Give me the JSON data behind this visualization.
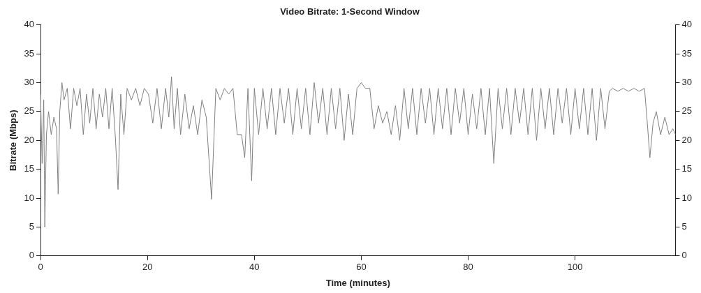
{
  "chart_data": {
    "type": "line",
    "title": "Video Bitrate: 1-Second Window",
    "xlabel": "Time (minutes)",
    "ylabel": "Bitrate (Mbps)",
    "xlim": [
      0,
      118.8
    ],
    "xticks": [
      0,
      20,
      40,
      60,
      80,
      100
    ],
    "ylim": [
      0,
      40
    ],
    "yticks": [
      0,
      5,
      10,
      15,
      20,
      25,
      30,
      35,
      40
    ],
    "y2lim": [
      0,
      40
    ],
    "y2ticks": [
      0,
      5,
      10,
      15,
      20,
      25,
      30,
      35,
      40
    ],
    "marker": "none",
    "grid": false,
    "legend": false,
    "series": [
      {
        "color": "#808080",
        "x": [
          0,
          0.3,
          0.6,
          0.8,
          1.1,
          1.5,
          2,
          2.5,
          3,
          3.3,
          3.6,
          4,
          4.4,
          5,
          5.6,
          6.2,
          6.8,
          7.4,
          8,
          8.6,
          9.2,
          9.8,
          10.4,
          11,
          11.6,
          12.2,
          12.8,
          13.4,
          14,
          14.5,
          15,
          15.6,
          16.2,
          17,
          17.8,
          18.6,
          19.4,
          20.2,
          21,
          21.8,
          22.6,
          23.4,
          24,
          24.5,
          25,
          25.6,
          26.2,
          27,
          27.8,
          28.6,
          29.4,
          30.2,
          31,
          32,
          32.8,
          33.6,
          34.4,
          35.2,
          36,
          36.8,
          37.6,
          38.2,
          38.8,
          39.5,
          40,
          40.8,
          41.6,
          42.4,
          43.2,
          44,
          44.8,
          45.6,
          46.4,
          47.2,
          48,
          48.8,
          49.6,
          50.4,
          51.2,
          52,
          52.8,
          53.6,
          54.4,
          55.2,
          56,
          56.8,
          57.6,
          58.4,
          59.2,
          60,
          60.8,
          61.6,
          62.4,
          63.2,
          64,
          64.8,
          65.6,
          66.4,
          67.2,
          68,
          68.8,
          69.6,
          70.4,
          71.2,
          72,
          72.8,
          73.6,
          74.4,
          75.2,
          76,
          76.8,
          77.6,
          78.4,
          79.2,
          80,
          80.8,
          81.6,
          82.4,
          83.2,
          84,
          84.8,
          85.6,
          86.4,
          87.2,
          88,
          88.8,
          89.6,
          90.4,
          91.2,
          92,
          92.8,
          93.6,
          94.4,
          95.2,
          96,
          96.8,
          97.6,
          98.4,
          99.2,
          100,
          100.8,
          101.6,
          102.4,
          103.2,
          104,
          104.8,
          105.6,
          106.4,
          107,
          108,
          109,
          110,
          111,
          112,
          113,
          113.6,
          114,
          114.6,
          115.2,
          116,
          116.8,
          117.6,
          118.3,
          118.8
        ],
        "values": [
          28,
          16,
          27,
          5,
          21,
          25,
          21,
          24,
          22,
          10.7,
          25,
          30,
          27,
          29,
          22,
          29,
          26,
          29,
          21,
          28,
          23,
          29,
          22,
          28,
          24,
          29,
          22,
          29,
          20.5,
          11.5,
          28,
          21,
          29,
          27,
          29,
          26,
          29,
          28,
          23,
          29,
          22,
          29,
          24,
          31,
          22,
          29,
          21,
          28,
          22,
          26,
          21,
          27,
          24,
          9.8,
          29,
          27,
          29,
          28,
          29,
          21,
          21,
          17,
          29,
          13,
          29,
          21,
          29,
          22,
          29,
          21,
          29,
          23,
          29,
          21,
          29,
          22,
          29,
          21,
          30,
          23,
          29,
          21,
          29,
          22,
          29,
          20,
          28,
          21,
          29,
          30,
          29,
          29,
          22,
          26,
          23,
          25,
          21,
          26,
          20,
          29,
          22,
          29,
          21,
          29,
          23,
          29,
          21,
          29,
          22,
          29,
          21,
          29,
          23,
          29,
          21,
          28,
          22,
          29,
          21,
          29,
          16,
          29,
          22,
          29,
          21,
          29,
          23,
          29,
          21,
          29,
          20,
          29,
          22,
          29,
          21,
          29,
          23,
          29,
          21,
          29,
          22,
          29,
          21,
          29,
          20,
          29,
          22,
          28.5,
          29,
          28.5,
          29,
          28.5,
          29,
          28.5,
          29,
          22,
          17,
          23,
          25,
          21,
          24,
          21,
          22,
          21
        ]
      }
    ]
  }
}
